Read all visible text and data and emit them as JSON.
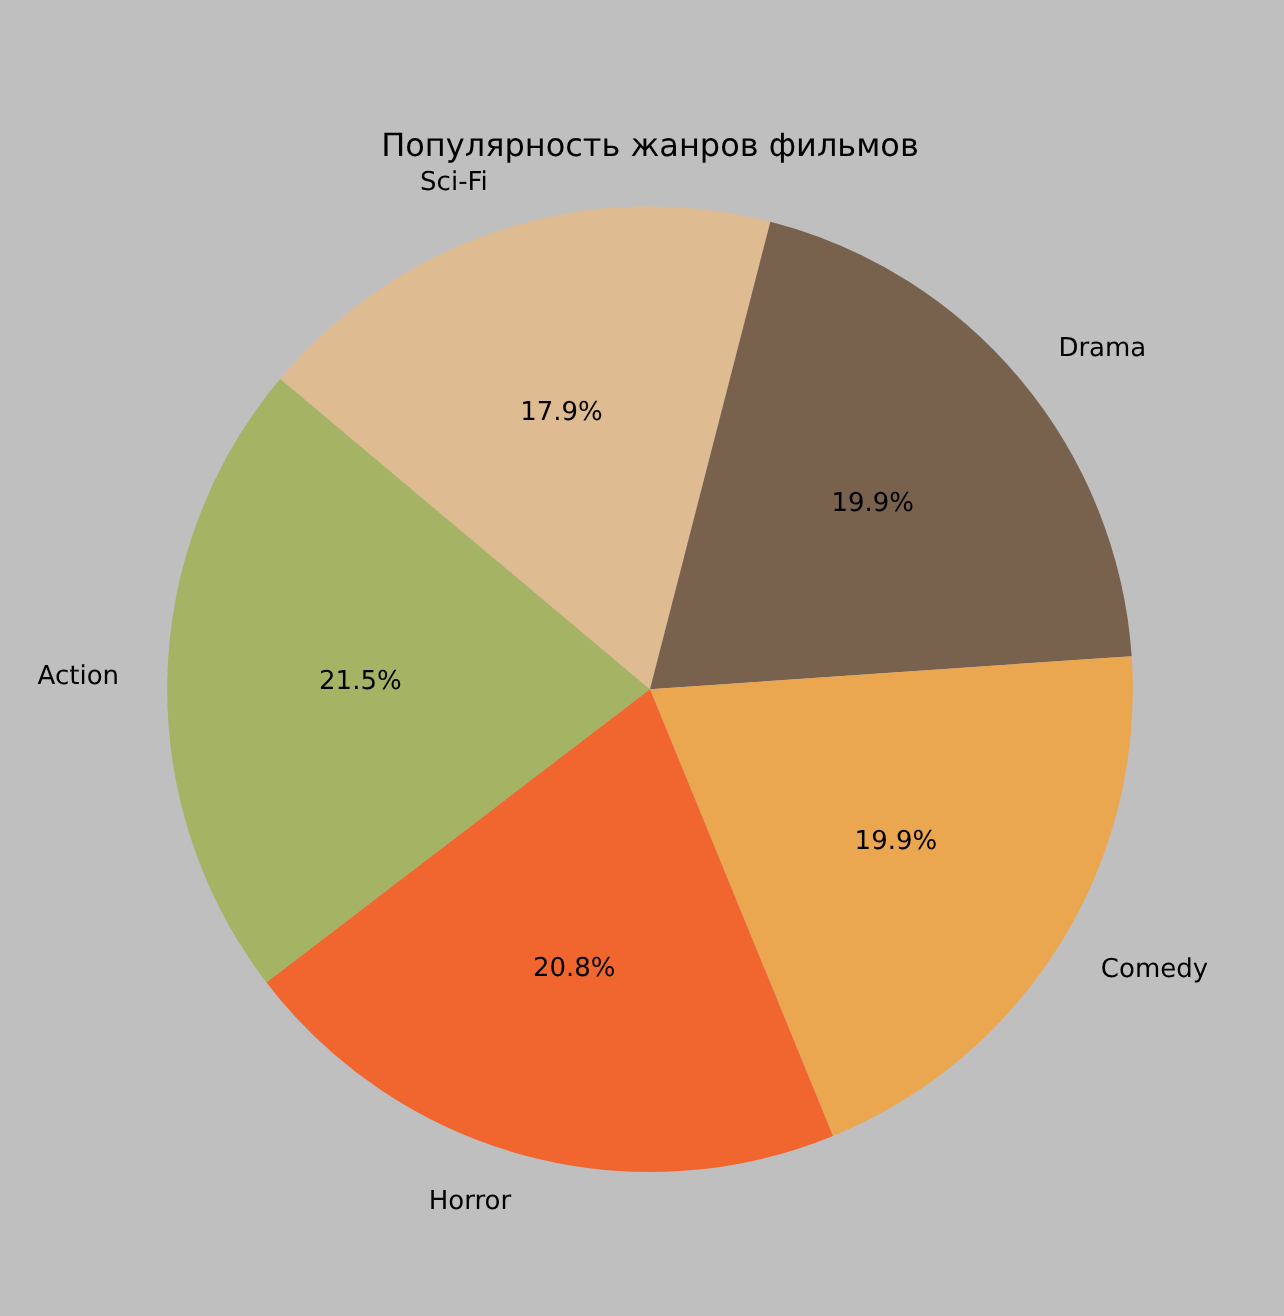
{
  "chart_data": {
    "type": "pie",
    "title": "Популярность жанров фильмов",
    "categories": [
      "Action",
      "Sci-Fi",
      "Drama",
      "Comedy",
      "Horror"
    ],
    "values": [
      21.5,
      17.9,
      19.9,
      19.9,
      20.8
    ],
    "value_labels": [
      "21.5%",
      "17.9%",
      "19.9%",
      "19.9%",
      "20.8%"
    ],
    "colors": [
      "#a5b364",
      "#dfbb91",
      "#78614d",
      "#eba650",
      "#f1662e"
    ],
    "legend": false
  }
}
